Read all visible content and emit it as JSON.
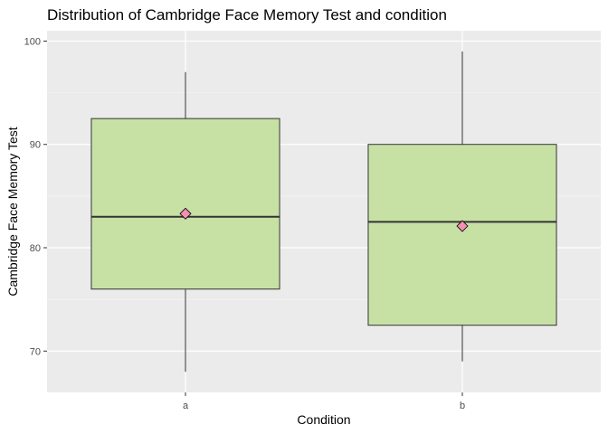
{
  "chart_data": {
    "type": "boxplot",
    "title": "Distribution of Cambridge Face Memory Test and condition",
    "xlabel": "Condition",
    "ylabel": "Cambridge Face Memory Test",
    "categories": [
      "a",
      "b"
    ],
    "ylim": [
      66,
      101
    ],
    "yticks": [
      70,
      80,
      90,
      100
    ],
    "grid": true,
    "boxes": [
      {
        "category": "a",
        "whisker_low": 68,
        "q1": 76,
        "median": 83,
        "q3": 92.5,
        "whisker_high": 97,
        "mean": 83.3
      },
      {
        "category": "b",
        "whisker_low": 69,
        "q1": 72.5,
        "median": 82.5,
        "q3": 90,
        "whisker_high": 99,
        "mean": 82.1
      }
    ],
    "colors": {
      "panel": "#ebebeb",
      "grid_major": "#ffffff",
      "box_fill": "#c7e1a5",
      "box_line": "#333333",
      "mean_marker": "#f48fb1"
    }
  }
}
